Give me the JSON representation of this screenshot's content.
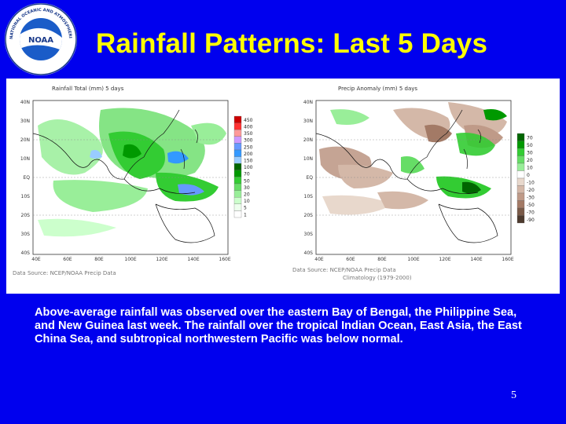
{
  "slide": {
    "title": "Rainfall Patterns: Last 5 Days",
    "logo_text": "NATIONAL OCEANIC AND ATMOSPHERIC ADMINISTRATION · U.S. DEPARTMENT OF COMMERCE",
    "logo_mark": "NOAA",
    "body": "Above-average rainfall was observed over the eastern Bay of Bengal, the Philippine Sea, and New Guinea last week. The rainfall over the tropical Indian Ocean, East Asia, the East China Sea, and subtropical northwestern Pacific was below normal.",
    "page_number": "5"
  },
  "maps": {
    "total": {
      "title": "Rainfall Total (mm) 5 days",
      "source": "Data Source: NCEP/NOAA Precip Data",
      "colorbar": [
        "450",
        "400",
        "350",
        "300",
        "250",
        "200",
        "150",
        "100",
        "70",
        "50",
        "30",
        "20",
        "10",
        "5",
        "1"
      ],
      "colors": [
        "#cc0000",
        "#ff3333",
        "#ff9999",
        "#cc99ff",
        "#6699ff",
        "#3399ff",
        "#99ccff",
        "#006600",
        "#009900",
        "#33cc33",
        "#66dd66",
        "#99ee99",
        "#ccffcc",
        "#eeffee",
        "#ffffff"
      ]
    },
    "anomaly": {
      "title": "Precip Anomaly (mm) 5 days",
      "source": "Data Source: NCEP/NOAA Precip Data",
      "source_line2": "Climatology (1979-2000)",
      "colorbar": [
        "70",
        "50",
        "30",
        "20",
        "10",
        "0",
        "-10",
        "-20",
        "-30",
        "-50",
        "-70",
        "-90"
      ],
      "colors": [
        "#006600",
        "#009900",
        "#33cc33",
        "#66dd66",
        "#99ee99",
        "#ffffff",
        "#e8d8cc",
        "#d4b8a8",
        "#bf9a88",
        "#a37a66",
        "#7a5a48",
        "#4d3a2e"
      ]
    },
    "lat_labels": [
      "40N",
      "30N",
      "20N",
      "10N",
      "EQ",
      "10S",
      "20S",
      "30S",
      "40S"
    ],
    "lon_labels": [
      "40E",
      "60E",
      "80E",
      "100E",
      "120E",
      "140E",
      "160E"
    ]
  }
}
